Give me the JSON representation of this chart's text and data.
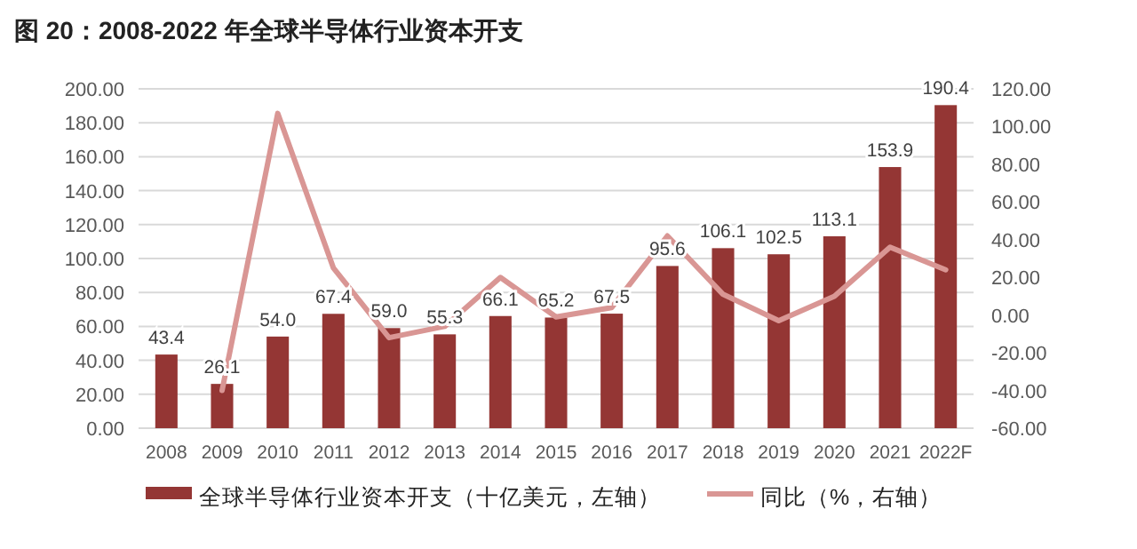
{
  "chart_data": {
    "type": "bar",
    "title": "图 20：2008-2022 年全球半导体行业资本开支",
    "categories": [
      "2008",
      "2009",
      "2010",
      "2011",
      "2012",
      "2013",
      "2014",
      "2015",
      "2016",
      "2017",
      "2018",
      "2019",
      "2020",
      "2021",
      "2022F"
    ],
    "series": [
      {
        "name": "全球半导体行业资本开支（十亿美元，左轴）",
        "color": "#943634",
        "values": [
          43.4,
          26.1,
          54.0,
          67.4,
          59.0,
          55.3,
          66.1,
          65.2,
          67.5,
          95.6,
          106.1,
          102.5,
          113.1,
          153.9,
          190.4
        ],
        "value_labels": [
          "43.4",
          "26.1",
          "54.0",
          "67.4",
          "59.0",
          "55.3",
          "66.1",
          "65.2",
          "67.5",
          "95.6",
          "106.1",
          "102.5",
          "113.1",
          "153.9",
          "190.4"
        ]
      },
      {
        "name": "同比（%，右轴）",
        "type": "line",
        "axis": "y2",
        "color": "#d99694",
        "values": [
          null,
          -40,
          107,
          25,
          -12,
          -6,
          20,
          -1,
          4,
          42,
          11,
          -3,
          10,
          36,
          24
        ]
      }
    ],
    "ylim": [
      0,
      200
    ],
    "yticks": [
      {
        "value": 0,
        "label": "0.00"
      },
      {
        "value": 20,
        "label": "20.00"
      },
      {
        "value": 40,
        "label": "40.00"
      },
      {
        "value": 60,
        "label": "60.00"
      },
      {
        "value": 80,
        "label": "80.00"
      },
      {
        "value": 100,
        "label": "100.00"
      },
      {
        "value": 120,
        "label": "120.00"
      },
      {
        "value": 140,
        "label": "140.00"
      },
      {
        "value": 160,
        "label": "160.00"
      },
      {
        "value": 180,
        "label": "180.00"
      },
      {
        "value": 200,
        "label": "200.00"
      }
    ],
    "y2lim": [
      -60,
      120
    ],
    "y2ticks": [
      {
        "value": -60,
        "label": "-60.00"
      },
      {
        "value": -40,
        "label": "-40.00"
      },
      {
        "value": -20,
        "label": "-20.00"
      },
      {
        "value": 0,
        "label": "0.00"
      },
      {
        "value": 20,
        "label": "20.00"
      },
      {
        "value": 40,
        "label": "40.00"
      },
      {
        "value": 60,
        "label": "60.00"
      },
      {
        "value": 80,
        "label": "80.00"
      },
      {
        "value": 100,
        "label": "100.00"
      },
      {
        "value": 120,
        "label": "120.00"
      }
    ],
    "grid": "y",
    "legend": "bottom",
    "marker": "none",
    "line_style": "solid"
  }
}
